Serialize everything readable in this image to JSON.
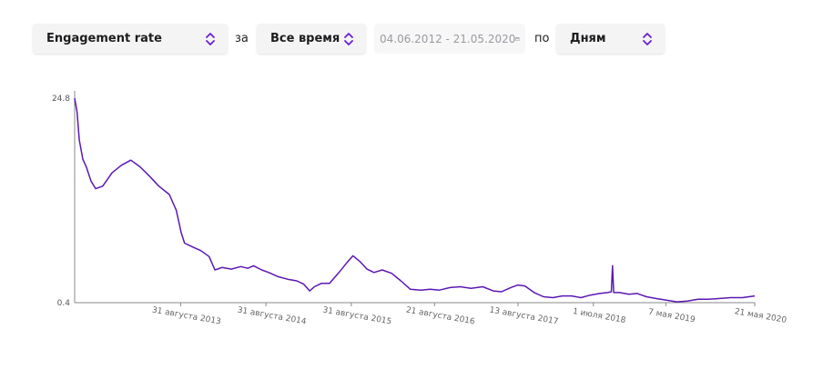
{
  "controls": {
    "metric_label": "Engagement rate",
    "word_for": "за",
    "period_label": "Все время",
    "date_range": "04.06.2012 - 21.05.2020",
    "word_by": "по",
    "granularity_label": "Дням"
  },
  "colors": {
    "line": "#5b17b3",
    "axis": "#888888",
    "chevron": "#6a1fd1"
  },
  "chart_data": {
    "type": "line",
    "title": "",
    "xlabel": "",
    "ylabel": "",
    "y_ticks": [
      "24.8",
      "0.4"
    ],
    "ylim": [
      0.4,
      24.8
    ],
    "x_ticks": [
      {
        "label": "31 августа 2013",
        "x": "2013-08-31"
      },
      {
        "label": "31 августа 2014",
        "x": "2014-08-31"
      },
      {
        "label": "31 августа 2015",
        "x": "2015-08-31"
      },
      {
        "label": "21 августа 2016",
        "x": "2016-08-21"
      },
      {
        "label": "13 августа 2017",
        "x": "2017-08-13"
      },
      {
        "label": "1 июля 2018",
        "x": "2018-07-01"
      },
      {
        "label": "7 мая 2019",
        "x": "2019-05-07"
      },
      {
        "label": "21 мая 2020",
        "x": "2020-05-21"
      }
    ],
    "xlim": [
      "2012-06-04",
      "2020-05-21"
    ],
    "grid": false,
    "legend": "none",
    "series": [
      {
        "points": [
          [
            "2012-06-04",
            24.8
          ],
          [
            "2012-06-14",
            23.2
          ],
          [
            "2012-06-24",
            19.8
          ],
          [
            "2012-07-09",
            17.5
          ],
          [
            "2012-07-24",
            16.6
          ],
          [
            "2012-08-13",
            14.9
          ],
          [
            "2012-09-02",
            14.0
          ],
          [
            "2012-10-02",
            14.3
          ],
          [
            "2012-11-11",
            15.9
          ],
          [
            "2012-12-21",
            16.8
          ],
          [
            "2013-01-30",
            17.4
          ],
          [
            "2013-03-11",
            16.6
          ],
          [
            "2013-04-20",
            15.5
          ],
          [
            "2013-05-30",
            14.3
          ],
          [
            "2013-07-14",
            13.3
          ],
          [
            "2013-08-13",
            11.4
          ],
          [
            "2013-09-02",
            8.8
          ],
          [
            "2013-09-17",
            7.5
          ],
          [
            "2013-10-17",
            7.1
          ],
          [
            "2013-11-26",
            6.6
          ],
          [
            "2013-12-31",
            5.9
          ],
          [
            "2014-01-25",
            4.3
          ],
          [
            "2014-02-24",
            4.6
          ],
          [
            "2014-04-05",
            4.4
          ],
          [
            "2014-05-15",
            4.7
          ],
          [
            "2014-06-14",
            4.5
          ],
          [
            "2014-07-09",
            4.8
          ],
          [
            "2014-08-13",
            4.3
          ],
          [
            "2014-09-12",
            4.0
          ],
          [
            "2014-10-22",
            3.5
          ],
          [
            "2014-12-01",
            3.2
          ],
          [
            "2015-01-10",
            3.0
          ],
          [
            "2015-02-09",
            2.6
          ],
          [
            "2015-03-06",
            1.8
          ],
          [
            "2015-03-26",
            2.3
          ],
          [
            "2015-04-25",
            2.7
          ],
          [
            "2015-05-30",
            2.7
          ],
          [
            "2015-07-09",
            4.0
          ],
          [
            "2015-08-13",
            5.2
          ],
          [
            "2015-09-07",
            6.0
          ],
          [
            "2015-10-07",
            5.3
          ],
          [
            "2015-11-06",
            4.4
          ],
          [
            "2015-12-06",
            4.0
          ],
          [
            "2016-01-10",
            4.3
          ],
          [
            "2016-02-19",
            3.9
          ],
          [
            "2016-03-30",
            3.0
          ],
          [
            "2016-05-09",
            2.0
          ],
          [
            "2016-06-23",
            1.9
          ],
          [
            "2016-08-02",
            2.0
          ],
          [
            "2016-09-11",
            1.9
          ],
          [
            "2016-10-26",
            2.2
          ],
          [
            "2016-12-10",
            2.3
          ],
          [
            "2017-01-24",
            2.1
          ],
          [
            "2017-03-15",
            2.3
          ],
          [
            "2017-04-29",
            1.8
          ],
          [
            "2017-06-03",
            1.7
          ],
          [
            "2017-07-13",
            2.2
          ],
          [
            "2017-08-12",
            2.5
          ],
          [
            "2017-09-11",
            2.4
          ],
          [
            "2017-10-21",
            1.6
          ],
          [
            "2017-11-30",
            1.1
          ],
          [
            "2018-01-09",
            1.0
          ],
          [
            "2018-02-18",
            1.2
          ],
          [
            "2018-03-30",
            1.2
          ],
          [
            "2018-05-09",
            1.0
          ],
          [
            "2018-06-18",
            1.3
          ],
          [
            "2018-07-28",
            1.5
          ],
          [
            "2018-09-01",
            1.6
          ],
          [
            "2018-09-16",
            1.7
          ],
          [
            "2018-09-21",
            4.8
          ],
          [
            "2018-09-26",
            1.6
          ],
          [
            "2018-10-21",
            1.6
          ],
          [
            "2018-11-30",
            1.4
          ],
          [
            "2019-01-04",
            1.5
          ],
          [
            "2019-02-13",
            1.1
          ],
          [
            "2019-03-25",
            0.9
          ],
          [
            "2019-05-09",
            0.7
          ],
          [
            "2019-06-23",
            0.5
          ],
          [
            "2019-08-07",
            0.6
          ],
          [
            "2019-09-21",
            0.8
          ],
          [
            "2019-11-05",
            0.8
          ],
          [
            "2019-12-25",
            0.9
          ],
          [
            "2020-02-08",
            1.0
          ],
          [
            "2020-03-29",
            1.0
          ],
          [
            "2020-05-21",
            1.2
          ]
        ]
      }
    ]
  }
}
